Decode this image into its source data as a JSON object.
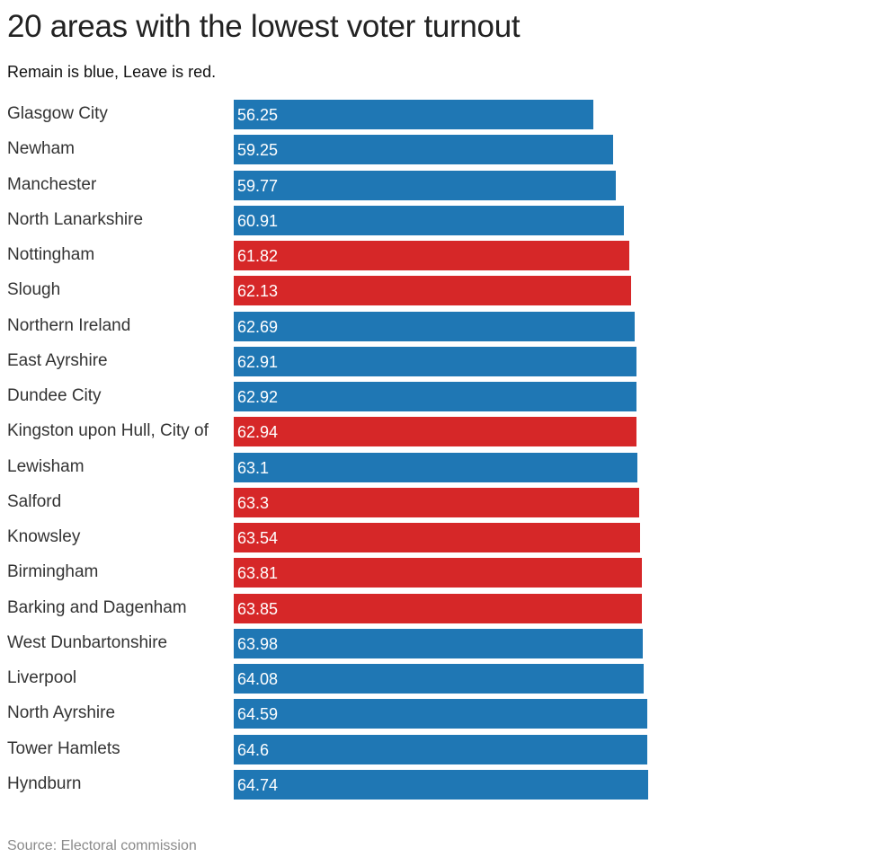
{
  "title": "20 areas with the lowest voter turnout",
  "subtitle": "Remain is blue, Leave is red.",
  "source": "Source: Electoral commission",
  "colors": {
    "remain": "#1f77b4",
    "leave": "#d62728"
  },
  "chart_data": {
    "type": "bar",
    "orientation": "horizontal",
    "title": "20 areas with the lowest voter turnout",
    "subtitle": "Remain is blue, Leave is red.",
    "xlim": [
      0,
      100
    ],
    "grid": false,
    "categories": [
      "Glasgow City",
      "Newham",
      "Manchester",
      "North Lanarkshire",
      "Nottingham",
      "Slough",
      "Northern Ireland",
      "East Ayrshire",
      "Dundee City",
      "Kingston upon Hull, City of",
      "Lewisham",
      "Salford",
      "Knowsley",
      "Birmingham",
      "Barking and Dagenham",
      "West Dunbartonshire",
      "Liverpool",
      "North Ayrshire",
      "Tower Hamlets",
      "Hyndburn"
    ],
    "values": [
      56.25,
      59.25,
      59.77,
      60.91,
      61.82,
      62.13,
      62.69,
      62.91,
      62.92,
      62.94,
      63.1,
      63.3,
      63.54,
      63.81,
      63.85,
      63.98,
      64.08,
      64.59,
      64.6,
      64.74
    ],
    "value_labels": [
      "56.25",
      "59.25",
      "59.77",
      "60.91",
      "61.82",
      "62.13",
      "62.69",
      "62.91",
      "62.92",
      "62.94",
      "63.1",
      "63.3",
      "63.54",
      "63.81",
      "63.85",
      "63.98",
      "64.08",
      "64.59",
      "64.6",
      "64.74"
    ],
    "result": [
      "remain",
      "remain",
      "remain",
      "remain",
      "leave",
      "leave",
      "remain",
      "remain",
      "remain",
      "leave",
      "remain",
      "leave",
      "leave",
      "leave",
      "leave",
      "remain",
      "remain",
      "remain",
      "remain",
      "remain"
    ]
  }
}
